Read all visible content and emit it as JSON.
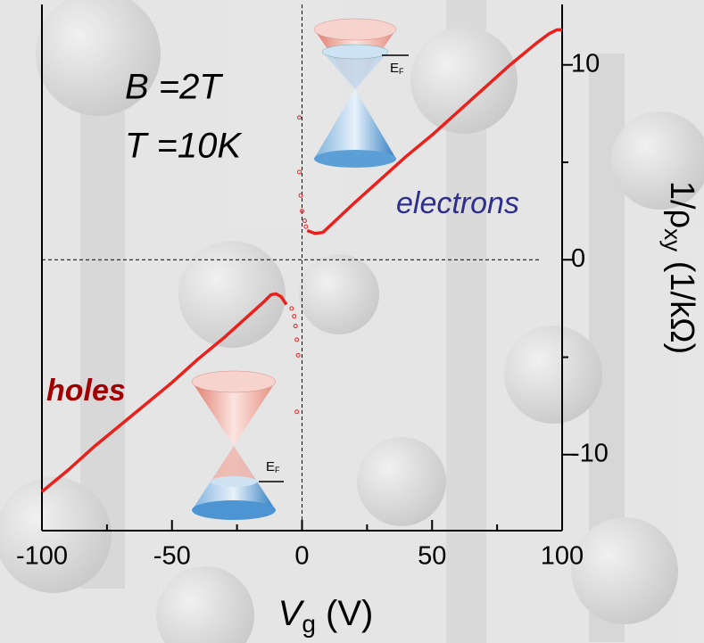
{
  "chart_data": {
    "type": "line",
    "annotations": [
      "B =2T",
      "T =10K",
      "electrons",
      "holes"
    ],
    "x_label": {
      "text": "V",
      "subscript": "g",
      "suffix": " (V)"
    },
    "y_label": {
      "text": "1/ρ",
      "subscript": "xy",
      "suffix": " (1/kΩ)"
    },
    "inset_label": {
      "text": "E",
      "subscript": "F"
    },
    "xlim": [
      -100,
      100
    ],
    "ylim": [
      -13.9,
      13.1
    ],
    "xticks": [
      -100,
      -50,
      0,
      50,
      100
    ],
    "yticks": [
      -10,
      0,
      10
    ],
    "zero_lines": true,
    "series": [
      {
        "style": "line",
        "color": "#e8211d",
        "x": [
          -100,
          -90,
          -80,
          -70,
          -60,
          -50,
          -40,
          -30,
          -20,
          -15,
          -12,
          -10,
          -8,
          -6
        ],
        "values": [
          -11.9,
          -10.8,
          -9.6,
          -8.5,
          -7.4,
          -6.3,
          -5.1,
          -4.0,
          -2.8,
          -2.2,
          -1.8,
          -1.75,
          -1.9,
          -2.3
        ]
      },
      {
        "style": "markers",
        "color": "#e8211d",
        "x": [
          -4,
          -3,
          -2.5,
          -2,
          -1.5,
          -2,
          -1,
          -1,
          -0.5,
          0,
          1,
          1.5
        ],
        "values": [
          -2.5,
          -2.9,
          -3.4,
          -4.1,
          -4.9,
          -7.8,
          7.3,
          4.5,
          3.3,
          2.5,
          2.0,
          1.7
        ]
      },
      {
        "style": "line",
        "color": "#e8211d",
        "x": [
          2,
          5,
          8,
          12,
          20,
          30,
          40,
          50,
          60,
          70,
          80,
          90,
          95,
          98,
          100
        ],
        "values": [
          1.5,
          1.35,
          1.4,
          1.9,
          2.9,
          4.1,
          5.3,
          6.4,
          7.6,
          8.8,
          10.0,
          11.1,
          11.6,
          11.8,
          11.8
        ]
      }
    ]
  }
}
